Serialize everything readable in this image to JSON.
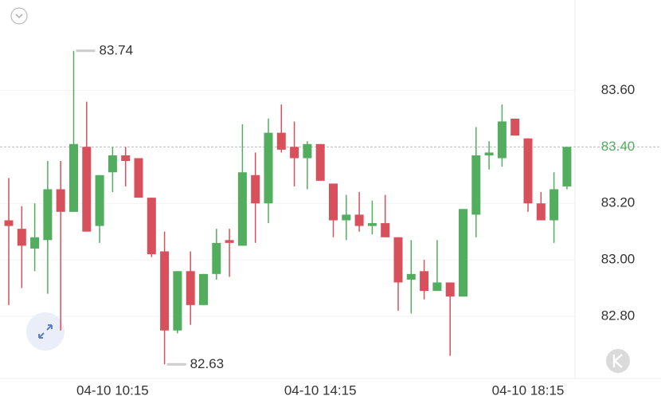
{
  "chart_data": {
    "type": "candlestick",
    "categories": [
      null,
      null,
      null,
      null,
      null,
      null,
      null,
      null,
      "04-10 10:15",
      null,
      null,
      null,
      null,
      null,
      null,
      null,
      null,
      null,
      null,
      null,
      null,
      null,
      null,
      null,
      "04-10 14:15",
      null,
      null,
      null,
      null,
      null,
      null,
      null,
      null,
      null,
      null,
      null,
      null,
      null,
      null,
      null,
      "04-10 18:15",
      null,
      null,
      null
    ],
    "open": [
      83.14,
      83.11,
      83.04,
      83.07,
      83.25,
      83.17,
      83.4,
      83.12,
      83.31,
      83.37,
      83.36,
      83.22,
      83.03,
      82.75,
      82.96,
      82.84,
      82.95,
      83.07,
      83.05,
      83.3,
      83.2,
      83.45,
      83.4,
      83.36,
      83.41,
      83.27,
      83.14,
      83.16,
      83.12,
      83.13,
      83.08,
      82.93,
      82.96,
      82.89,
      82.92,
      82.87,
      83.16,
      83.37,
      83.36,
      83.5,
      83.43,
      83.2,
      83.14,
      83.26
    ],
    "high": [
      83.29,
      83.19,
      83.2,
      83.35,
      83.35,
      83.74,
      83.56,
      83.3,
      83.4,
      83.4,
      83.36,
      83.22,
      83.1,
      82.96,
      83.03,
      82.95,
      83.11,
      83.11,
      83.48,
      83.38,
      83.5,
      83.55,
      83.49,
      83.42,
      83.41,
      83.27,
      83.23,
      83.24,
      83.21,
      83.23,
      83.08,
      83.07,
      83.0,
      83.07,
      82.92,
      83.18,
      83.47,
      83.42,
      83.55,
      83.5,
      83.43,
      83.24,
      83.31,
      83.4
    ],
    "low": [
      82.84,
      82.9,
      82.96,
      82.88,
      82.75,
      83.17,
      83.1,
      83.06,
      83.24,
      83.26,
      83.22,
      83.01,
      82.63,
      82.74,
      82.77,
      82.84,
      82.93,
      82.94,
      83.05,
      83.06,
      83.13,
      83.38,
      83.26,
      83.25,
      83.28,
      83.08,
      83.07,
      83.1,
      83.09,
      83.08,
      82.82,
      82.81,
      82.86,
      82.89,
      82.66,
      82.87,
      83.08,
      83.32,
      83.33,
      83.44,
      83.17,
      83.14,
      83.06,
      83.25
    ],
    "close": [
      83.12,
      83.05,
      83.08,
      83.25,
      83.17,
      83.41,
      83.1,
      83.3,
      83.37,
      83.35,
      83.22,
      83.02,
      82.75,
      82.96,
      82.84,
      82.95,
      83.06,
      83.06,
      83.31,
      83.2,
      83.45,
      83.39,
      83.36,
      83.41,
      83.28,
      83.14,
      83.16,
      83.12,
      83.13,
      83.08,
      82.92,
      82.95,
      82.89,
      82.92,
      82.87,
      83.18,
      83.37,
      83.38,
      83.49,
      83.44,
      83.2,
      83.14,
      83.25,
      83.4
    ],
    "up_color": "#52ad5f",
    "down_color": "#d8505c",
    "ylim": [
      82.58,
      83.92
    ],
    "yticks": [
      {
        "value": 82.8,
        "label": "82.80"
      },
      {
        "value": 83.0,
        "label": "83.00"
      },
      {
        "value": 83.2,
        "label": "83.20"
      },
      {
        "value": 83.6,
        "label": "83.60"
      }
    ],
    "grid": true,
    "last_price": {
      "value": 83.4,
      "label": "83.40"
    },
    "max_marker": {
      "value": 83.74,
      "label": "83.74"
    },
    "min_marker": {
      "value": 82.63,
      "label": "82.63"
    }
  }
}
